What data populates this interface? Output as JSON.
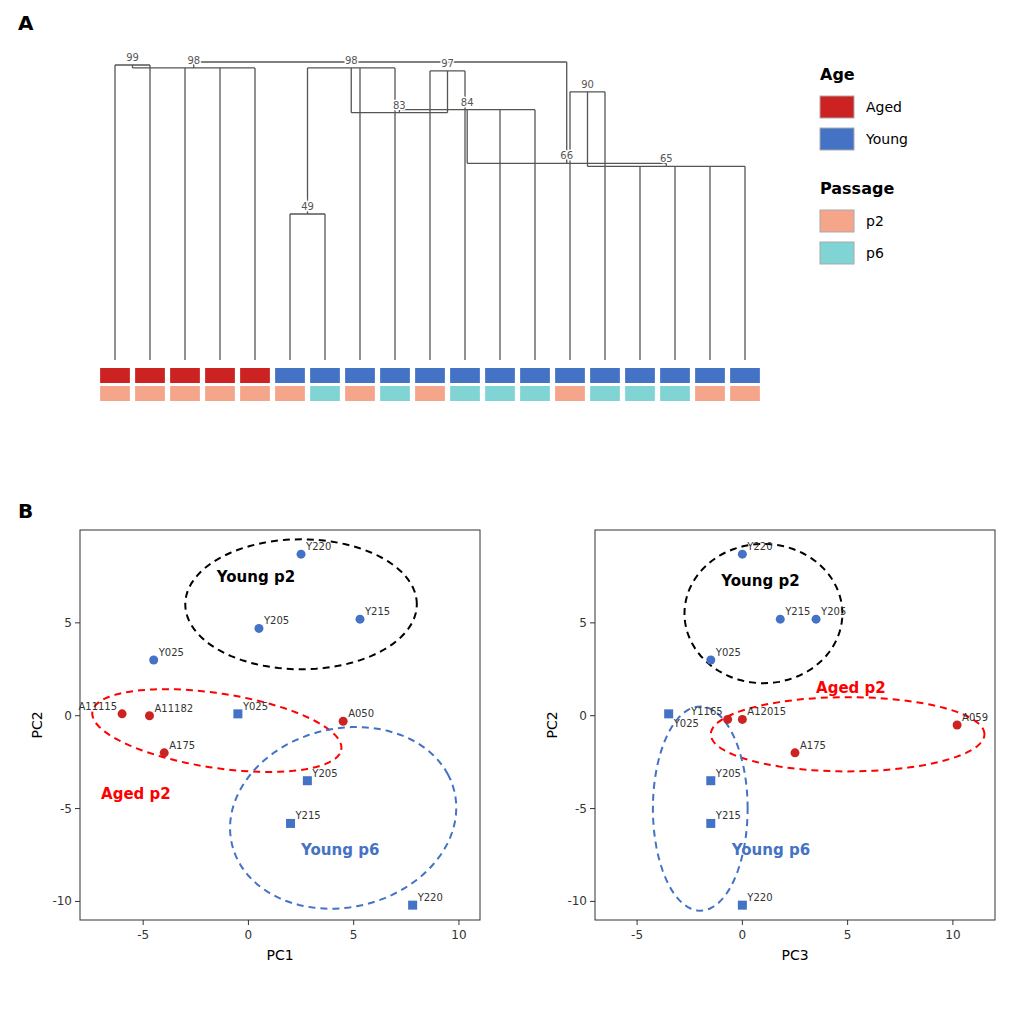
{
  "chart_data": [
    {
      "type": "dendrogram",
      "panel_label": "A",
      "categories": [
        null,
        null,
        null,
        null,
        null,
        null,
        null,
        null,
        null,
        null,
        null,
        null,
        null,
        null,
        null,
        null,
        null,
        null,
        null
      ],
      "nodes": [
        {
          "height": 99,
          "label": "99",
          "children": [
            {
              "leaf": 0
            },
            {
              "leaf": 1
            }
          ]
        },
        {
          "height": 98,
          "label": "98",
          "children": [
            {
              "node": 0
            },
            {
              "leaf": 2
            },
            {
              "leaf": 3
            },
            {
              "leaf": 4
            }
          ]
        },
        {
          "height": 49,
          "label": "49",
          "children": [
            {
              "leaf": 5
            },
            {
              "leaf": 6
            }
          ]
        },
        {
          "height": 98,
          "label": "98",
          "children": [
            {
              "node": 2
            },
            {
              "leaf": 7
            },
            {
              "leaf": 8
            }
          ]
        },
        {
          "height": 97,
          "label": "97",
          "children": [
            {
              "leaf": 9
            },
            {
              "leaf": 10
            }
          ]
        },
        {
          "height": 83,
          "label": "83",
          "children": [
            {
              "node": 3
            },
            {
              "node": 4
            }
          ]
        },
        {
          "height": 84,
          "label": "84",
          "children": [
            {
              "node": 5
            },
            {
              "leaf": 11
            },
            {
              "leaf": 12
            }
          ]
        },
        {
          "height": 90,
          "label": "90",
          "children": [
            {
              "leaf": 13
            },
            {
              "leaf": 14
            }
          ]
        },
        {
          "height": 65,
          "label": "65",
          "children": [
            {
              "node": 7
            },
            {
              "leaf": 15
            },
            {
              "leaf": 16
            },
            {
              "leaf": 17
            },
            {
              "leaf": 18
            }
          ]
        },
        {
          "height": 66,
          "label": "66",
          "children": [
            {
              "node": 6
            },
            {
              "node": 8
            }
          ]
        },
        {
          "height": 100,
          "children": [
            {
              "node": 1
            },
            {
              "node": 9
            }
          ]
        }
      ],
      "ylim": [
        0,
        100
      ],
      "tick_labels": false,
      "data_labels": true,
      "color": "#555555",
      "age_colors": [
        "#cc2222",
        "#cc2222",
        "#cc2222",
        "#cc2222",
        "#cc2222",
        "#4472c4",
        "#4472c4",
        "#4472c4",
        "#4472c4",
        "#4472c4",
        "#4472c4",
        "#4472c4",
        "#4472c4",
        "#4472c4",
        "#4472c4",
        "#4472c4",
        "#4472c4",
        "#4472c4",
        "#4472c4"
      ],
      "passage_colors": [
        "#f4a58a",
        "#f4a58a",
        "#f4a58a",
        "#f4a58a",
        "#f4a58a",
        "#f4a58a",
        "#80d4d4",
        "#f4a58a",
        "#80d4d4",
        "#f4a58a",
        "#80d4d4",
        "#80d4d4",
        "#80d4d4",
        "#f4a58a",
        "#80d4d4",
        "#80d4d4",
        "#80d4d4",
        "#f4a58a",
        "#f4a58a"
      ],
      "legend_groups": [
        {
          "title": "Age",
          "entries": [
            {
              "name": "Aged",
              "color": "#cc2222"
            },
            {
              "name": "Young",
              "color": "#4472c4"
            }
          ]
        },
        {
          "title": "Passage",
          "entries": [
            {
              "name": "p2",
              "color": "#f4a58a"
            },
            {
              "name": "p6",
              "color": "#80d4d4"
            }
          ]
        }
      ]
    },
    {
      "type": "scatter",
      "panel_label": "B",
      "xlabel": "PC1",
      "ylabel": "PC2",
      "xlim": [
        -8,
        11
      ],
      "ylim": [
        -11,
        10
      ],
      "xticks": [
        -5,
        0,
        5,
        10
      ],
      "yticks": [
        -10,
        -5,
        0,
        5
      ],
      "series": [
        {
          "name": "Young p2",
          "color": "#4472c4",
          "marker": "circle",
          "x": [
            -4.5,
            0.5,
            5.3,
            2.5
          ],
          "values": [
            3.0,
            4.7,
            5.2,
            8.7
          ],
          "labels": [
            "Y025",
            "Y205",
            "Y215",
            "Y220"
          ],
          "name_x": -1.5,
          "name_y": 7.2,
          "ellipse": {
            "cx": 2.5,
            "cy": 6.0,
            "width": 11,
            "height": 7,
            "angle": 0,
            "color": "black"
          }
        },
        {
          "name": "Aged p2",
          "color": "#cc2222",
          "marker": "circle",
          "x": [
            -6.0,
            -4.7,
            -4.0,
            4.5
          ],
          "values": [
            0.1,
            0.0,
            -2.0,
            -0.3
          ],
          "labels": [
            "A11115",
            "A11182",
            "A175",
            "A050"
          ],
          "name_x": -7.0,
          "name_y": -4.5,
          "ellipse": {
            "cx": -1.5,
            "cy": -0.8,
            "width": 12,
            "height": 4.0,
            "angle": -10,
            "color": "red"
          }
        },
        {
          "name": "Young p6",
          "color": "#4472c4",
          "marker": "square",
          "x": [
            -0.5,
            2.8,
            2.0,
            7.8
          ],
          "values": [
            0.1,
            -3.5,
            -5.8,
            -10.2
          ],
          "labels": [
            "Y025",
            "Y205",
            "Y215",
            "Y220"
          ],
          "name_x": 2.5,
          "name_y": -7.5,
          "ellipse": {
            "cx": 4.5,
            "cy": -5.5,
            "width": 11,
            "height": 9.5,
            "angle": 25,
            "color": "#4472c4"
          }
        }
      ]
    },
    {
      "type": "scatter",
      "xlabel": "PC3",
      "ylabel": "PC2",
      "xlim": [
        -7,
        12
      ],
      "ylim": [
        -11,
        10
      ],
      "xticks": [
        -5,
        0,
        5,
        10
      ],
      "yticks": [
        -10,
        -5,
        0,
        5
      ],
      "series": [
        {
          "name": "Young p2",
          "color": "#4472c4",
          "marker": "circle",
          "x": [
            -1.5,
            1.8,
            3.5,
            0.0
          ],
          "values": [
            3.0,
            5.2,
            5.2,
            8.7
          ],
          "labels": [
            "Y025",
            "Y215",
            "Y205",
            "Y220"
          ],
          "name_x": -1.0,
          "name_y": 7.0,
          "ellipse": {
            "cx": 1.0,
            "cy": 5.5,
            "width": 7.5,
            "height": 7.5,
            "angle": 0,
            "color": "black"
          }
        },
        {
          "name": "Aged p2",
          "color": "#cc2222",
          "marker": "circle",
          "x": [
            -0.7,
            0.0,
            2.5,
            10.2
          ],
          "values": [
            -0.2,
            -0.2,
            -2.0,
            -0.5
          ],
          "labels": [
            "Y1165",
            "A12015",
            "A175",
            "A059"
          ],
          "name_x": 3.5,
          "name_y": 1.2,
          "ellipse": {
            "cx": 5.0,
            "cy": -1.0,
            "width": 13,
            "height": 4.0,
            "angle": 0,
            "color": "red"
          }
        },
        {
          "name": "Young p6",
          "color": "#4472c4",
          "marker": "square",
          "x": [
            -3.5,
            -1.5,
            -1.5,
            0.0
          ],
          "values": [
            0.1,
            -3.5,
            -5.8,
            -10.2
          ],
          "labels": [
            "Y025",
            "Y205",
            "Y215",
            "Y220"
          ],
          "name_x": -0.5,
          "name_y": -7.5,
          "ellipse": {
            "cx": -2.0,
            "cy": -5.0,
            "width": 4.5,
            "height": 11,
            "angle": 0,
            "color": "#4472c4"
          }
        }
      ]
    }
  ]
}
